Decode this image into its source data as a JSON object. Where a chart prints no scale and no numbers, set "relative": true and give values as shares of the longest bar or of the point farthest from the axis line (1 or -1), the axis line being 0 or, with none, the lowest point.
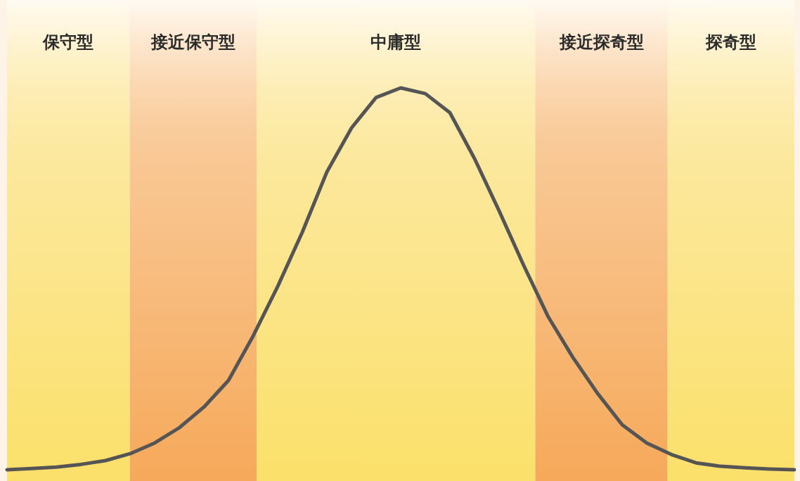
{
  "chart_data": {
    "type": "line",
    "relative": true,
    "categories": [
      null,
      null,
      null,
      null,
      null,
      null,
      null,
      null,
      null,
      null,
      null,
      null,
      null,
      null,
      null,
      null,
      null,
      null,
      null,
      null,
      null,
      null,
      null,
      null,
      null,
      null,
      null,
      null,
      null,
      null,
      null,
      null,
      null
    ],
    "series": [
      {
        "color": "#555555",
        "values": [
          0,
          0.003,
          0.007,
          0.014,
          0.024,
          0.042,
          0.07,
          0.11,
          0.164,
          0.234,
          0.35,
          0.48,
          0.622,
          0.78,
          0.895,
          0.975,
          1,
          0.985,
          0.935,
          0.815,
          0.678,
          0.535,
          0.4,
          0.294,
          0.2,
          0.118,
          0.07,
          0.04,
          0.018,
          0.009,
          0.005,
          0.002,
          0
        ]
      }
    ],
    "annotations": [
      "保守型",
      "接近保守型",
      "中庸型",
      "接近探奇型",
      "探奇型"
    ]
  }
}
